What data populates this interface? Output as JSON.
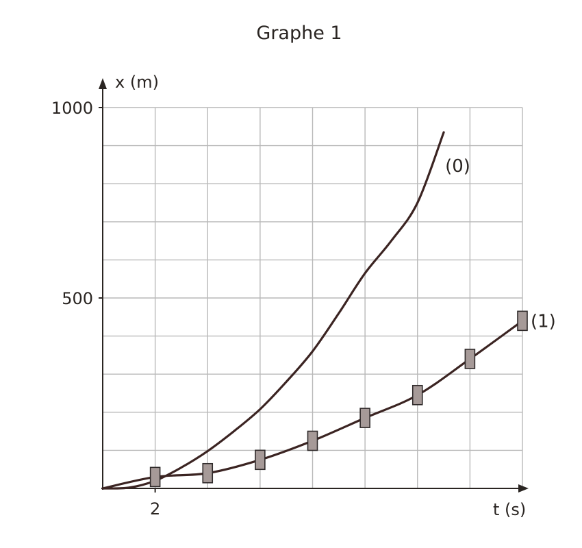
{
  "chart_data": {
    "type": "line",
    "title": "Graphe 1",
    "xlabel": "t (s)",
    "ylabel": "x (m)",
    "x_ticks": [
      {
        "value": 2,
        "label": "2"
      }
    ],
    "y_ticks": [
      {
        "value": 500,
        "label": "500"
      },
      {
        "value": 1000,
        "label": "1000"
      }
    ],
    "xlim": [
      0,
      16
    ],
    "ylim": [
      0,
      1000
    ],
    "grid": true,
    "series": [
      {
        "name": "(0)",
        "marker": "none",
        "x": [
          0,
          1,
          2,
          3,
          4,
          5,
          6,
          7,
          8,
          9,
          10,
          11,
          12,
          13
        ],
        "y": [
          0,
          2,
          20,
          55,
          98,
          150,
          208,
          280,
          360,
          460,
          565,
          650,
          750,
          935
        ]
      },
      {
        "name": "(1)",
        "marker": "square",
        "x": [
          0,
          2,
          4,
          6,
          8,
          10,
          12,
          14,
          16
        ],
        "y": [
          0,
          30,
          40,
          75,
          125,
          185,
          245,
          340,
          440
        ]
      }
    ],
    "colors": {
      "curve": "#3b2422",
      "axis": "#2a2522",
      "grid": "#b9b9b9",
      "marker_fill": "#a69a98",
      "marker_stroke": "#2f2a2a"
    }
  }
}
